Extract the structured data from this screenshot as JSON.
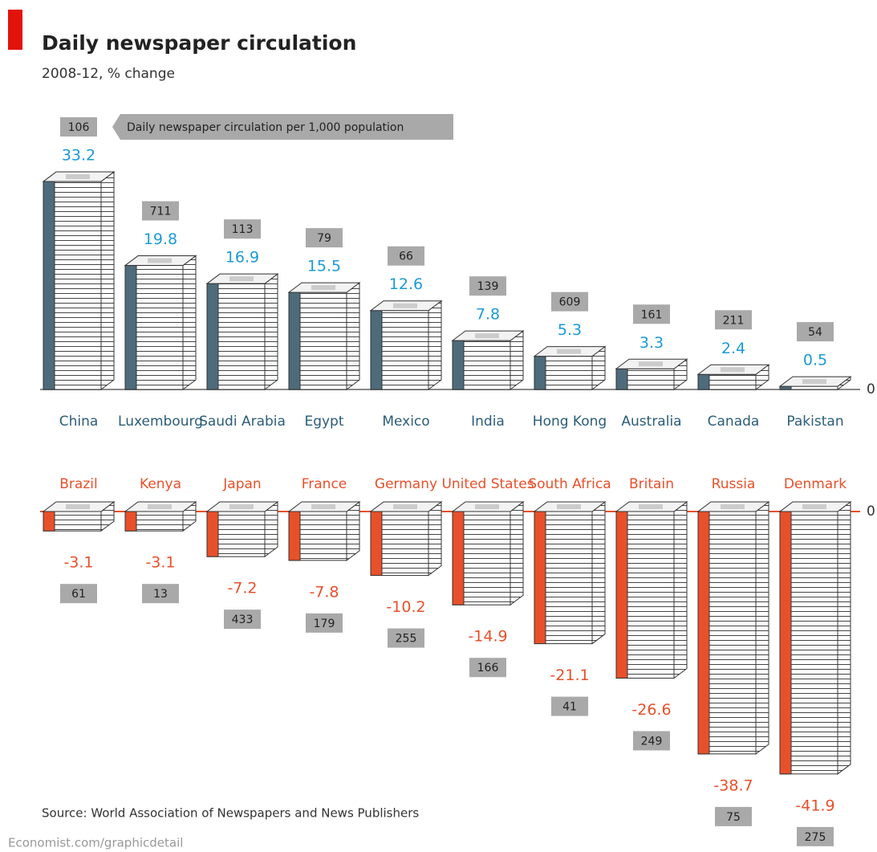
{
  "title": "Daily newspaper circulation",
  "subtitle": "2008-12, % change",
  "source": "Source: World Association of Newspapers and News Publishers",
  "footer": "Economist.com/graphicdetail",
  "chart_data": [
    {
      "type": "bar",
      "annotation": "Daily newspaper circulation per 1,000 population",
      "categories": [
        "China",
        "Luxembourg",
        "Saudi Arabia",
        "Egypt",
        "Mexico",
        "India",
        "Hong Kong",
        "Australia",
        "Canada",
        "Pakistan"
      ],
      "values": [
        33.2,
        19.8,
        16.9,
        15.5,
        12.6,
        7.8,
        5.3,
        3.3,
        2.4,
        0.5
      ],
      "circulation": [
        106,
        711,
        113,
        79,
        66,
        139,
        609,
        161,
        211,
        54
      ],
      "color": "#4d6b7b",
      "label_color": "#1a9bd7",
      "ylim": [
        0,
        35
      ],
      "yticks": [
        0
      ]
    },
    {
      "type": "bar",
      "categories": [
        "Brazil",
        "Kenya",
        "Japan",
        "France",
        "Germany",
        "United States",
        "South Africa",
        "Britain",
        "Russia",
        "Denmark"
      ],
      "values": [
        -3.1,
        -3.1,
        -7.2,
        -7.8,
        -10.2,
        -14.9,
        -21.1,
        -26.6,
        -38.7,
        -41.9
      ],
      "circulation": [
        61,
        13,
        433,
        179,
        255,
        166,
        41,
        249,
        75,
        275
      ],
      "color": "#e8502a",
      "label_color": "#e8502a",
      "ylim": [
        -45,
        0
      ],
      "yticks": [
        0
      ]
    }
  ]
}
